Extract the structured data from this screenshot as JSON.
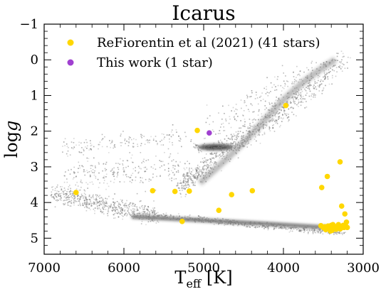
{
  "chart_data": {
    "type": "scatter",
    "title": "Icarus",
    "xlabel_main": "T",
    "xlabel_sub": "eff",
    "xlabel_unit": "[K]",
    "ylabel": "log",
    "ylabel_italic": "g",
    "xlim": [
      7000,
      3000
    ],
    "ylim": [
      5.45,
      -1.0
    ],
    "x_ticks": [
      7000,
      6000,
      5000,
      4000,
      3000
    ],
    "x_tick_labels": [
      "7000",
      "6000",
      "5000",
      "4000",
      "3000"
    ],
    "y_ticks": [
      -1,
      0,
      1,
      2,
      3,
      4,
      5
    ],
    "y_tick_labels": [
      "−1",
      "0",
      "1",
      "2",
      "3",
      "4",
      "5"
    ],
    "grid": false,
    "legend_position": "top-left",
    "background_model": "grey isochrone-like density cloud (dwarf sequence near logg 4.4-4.8, turnoff/subgiant branch, red giant branch rising to logg ~0)",
    "series": [
      {
        "name": "ReFiorentin et al (2021) (41 stars)",
        "color": "#ffd700",
        "x": [
          6600,
          5640,
          5360,
          5180,
          5270,
          4810,
          4650,
          4390,
          3970,
          5080,
          3520,
          3450,
          3290,
          3270,
          3230,
          3210,
          3530,
          3500,
          3480,
          3460,
          3440,
          3420,
          3400,
          3380,
          3360,
          3340,
          3320,
          3300,
          3280,
          3260,
          3250,
          3240,
          3220,
          3200,
          3470,
          3410,
          3350,
          3310,
          3390,
          3370,
          3290
        ],
        "y": [
          3.72,
          3.67,
          3.69,
          3.68,
          4.53,
          4.22,
          3.78,
          3.67,
          1.28,
          1.98,
          3.58,
          3.27,
          2.86,
          4.1,
          4.32,
          4.55,
          4.65,
          4.7,
          4.68,
          4.72,
          4.66,
          4.7,
          4.64,
          4.62,
          4.68,
          4.75,
          4.7,
          4.66,
          4.72,
          4.68,
          4.64,
          4.7,
          4.66,
          4.7,
          4.76,
          4.8,
          4.74,
          4.62,
          4.78,
          4.66,
          4.74
        ]
      },
      {
        "name": "This work (1 star)",
        "color": "#a040d0",
        "x": [
          4930
        ],
        "y": [
          2.05
        ]
      }
    ]
  }
}
